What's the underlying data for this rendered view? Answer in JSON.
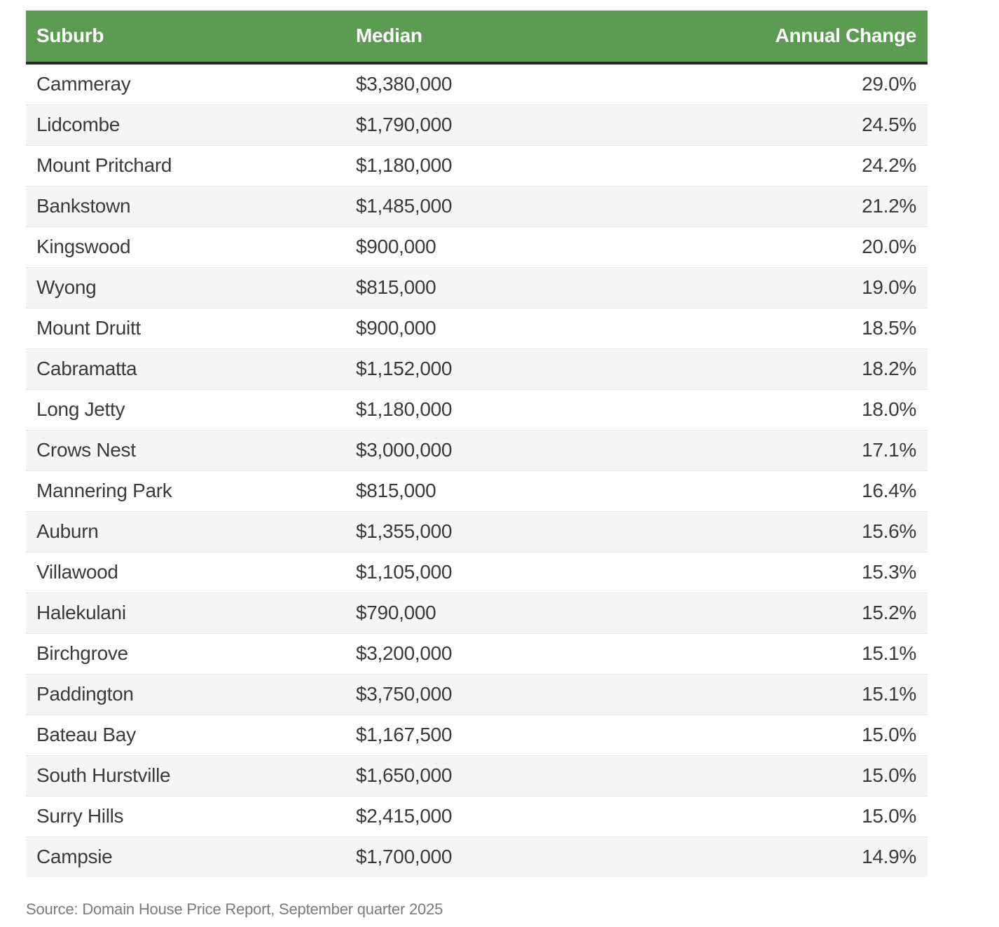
{
  "chart_data": {
    "type": "table",
    "columns": [
      "Suburb",
      "Median",
      "Annual Change"
    ],
    "rows": [
      {
        "suburb": "Cammeray",
        "median": "$3,380,000",
        "annual_change": "29.0%"
      },
      {
        "suburb": "Lidcombe",
        "median": "$1,790,000",
        "annual_change": "24.5%"
      },
      {
        "suburb": "Mount Pritchard",
        "median": "$1,180,000",
        "annual_change": "24.2%"
      },
      {
        "suburb": "Bankstown",
        "median": "$1,485,000",
        "annual_change": "21.2%"
      },
      {
        "suburb": "Kingswood",
        "median": "$900,000",
        "annual_change": "20.0%"
      },
      {
        "suburb": "Wyong",
        "median": "$815,000",
        "annual_change": "19.0%"
      },
      {
        "suburb": "Mount Druitt",
        "median": "$900,000",
        "annual_change": "18.5%"
      },
      {
        "suburb": "Cabramatta",
        "median": "$1,152,000",
        "annual_change": "18.2%"
      },
      {
        "suburb": "Long Jetty",
        "median": "$1,180,000",
        "annual_change": "18.0%"
      },
      {
        "suburb": "Crows Nest",
        "median": "$3,000,000",
        "annual_change": "17.1%"
      },
      {
        "suburb": "Mannering Park",
        "median": "$815,000",
        "annual_change": "16.4%"
      },
      {
        "suburb": "Auburn",
        "median": "$1,355,000",
        "annual_change": "15.6%"
      },
      {
        "suburb": "Villawood",
        "median": "$1,105,000",
        "annual_change": "15.3%"
      },
      {
        "suburb": "Halekulani",
        "median": "$790,000",
        "annual_change": "15.2%"
      },
      {
        "suburb": "Birchgrove",
        "median": "$3,200,000",
        "annual_change": "15.1%"
      },
      {
        "suburb": "Paddington",
        "median": "$3,750,000",
        "annual_change": "15.1%"
      },
      {
        "suburb": "Bateau Bay",
        "median": "$1,167,500",
        "annual_change": "15.0%"
      },
      {
        "suburb": "South Hurstville",
        "median": "$1,650,000",
        "annual_change": "15.0%"
      },
      {
        "suburb": "Surry Hills",
        "median": "$2,415,000",
        "annual_change": "15.0%"
      },
      {
        "suburb": "Campsie",
        "median": "$1,700,000",
        "annual_change": "14.9%"
      }
    ]
  },
  "source_note": "Source: Domain House Price Report, September quarter 2025",
  "colors": {
    "header_bg": "#5b9b52",
    "header_text": "#ffffff",
    "header_border": "#2b2b2b",
    "row_alt_bg": "#f5f5f5",
    "row_border": "#e7e7e7",
    "body_text": "#3a3a3a",
    "source_text": "#7b7b7b",
    "page_bg": "#ffffff"
  }
}
